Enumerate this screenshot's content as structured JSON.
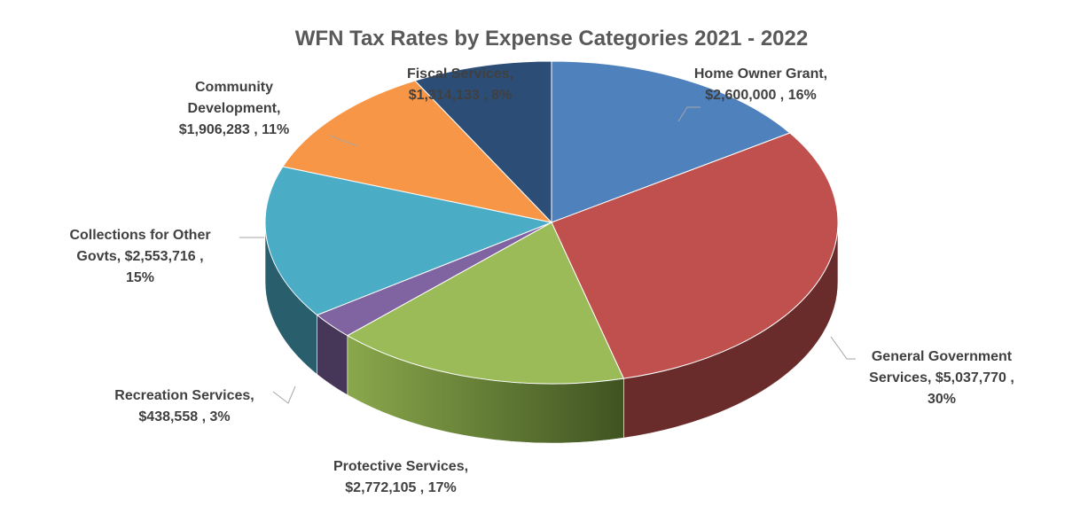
{
  "chart_data": {
    "type": "pie",
    "title": "WFN Tax Rates by Expense Categories 2021 - 2022",
    "slices": [
      {
        "name": "Home Owner Grant",
        "value": 2600000,
        "value_label": "$2,600,000",
        "percent": "16%",
        "color": "#4f81bd",
        "label_lines": [
          "Home Owner Grant,",
          "$2,600,000 , 16%"
        ]
      },
      {
        "name": "General Government Services",
        "value": 5037770,
        "value_label": "$5,037,770",
        "percent": "30%",
        "color": "#c0504d",
        "label_lines": [
          "General Government",
          "Services,  $5,037,770 ,",
          "30%"
        ]
      },
      {
        "name": "Protective Services",
        "value": 2772105,
        "value_label": "$2,772,105",
        "percent": "17%",
        "color": "#9bbb59",
        "label_lines": [
          "Protective Services,",
          "$2,772,105 , 17%"
        ]
      },
      {
        "name": "Recreation Services",
        "value": 438558,
        "value_label": "$438,558",
        "percent": "3%",
        "color": "#8064a2",
        "label_lines": [
          "Recreation Services,",
          "$438,558 , 3%"
        ]
      },
      {
        "name": "Collections for Other Govts",
        "value": 2553716,
        "value_label": "$2,553,716",
        "percent": "15%",
        "color": "#4bacc6",
        "label_lines": [
          "Collections for Other",
          "Govts,  $2,553,716 ,",
          "15%"
        ]
      },
      {
        "name": "Community Development",
        "value": 1906283,
        "value_label": "$1,906,283",
        "percent": "11%",
        "color": "#f79646",
        "label_lines": [
          "Community",
          "Development,",
          "$1,906,283 , 11%"
        ]
      },
      {
        "name": "Fiscal Services",
        "value": 1314133,
        "value_label": "$1,314,133",
        "percent": "8%",
        "color": "#2c4d75",
        "label_lines": [
          "Fiscal Services,",
          "$1,314,133 , 8%"
        ]
      }
    ],
    "start_angle_deg": 0,
    "direction": "clockwise",
    "style": "3d-pie",
    "legend": "none"
  }
}
